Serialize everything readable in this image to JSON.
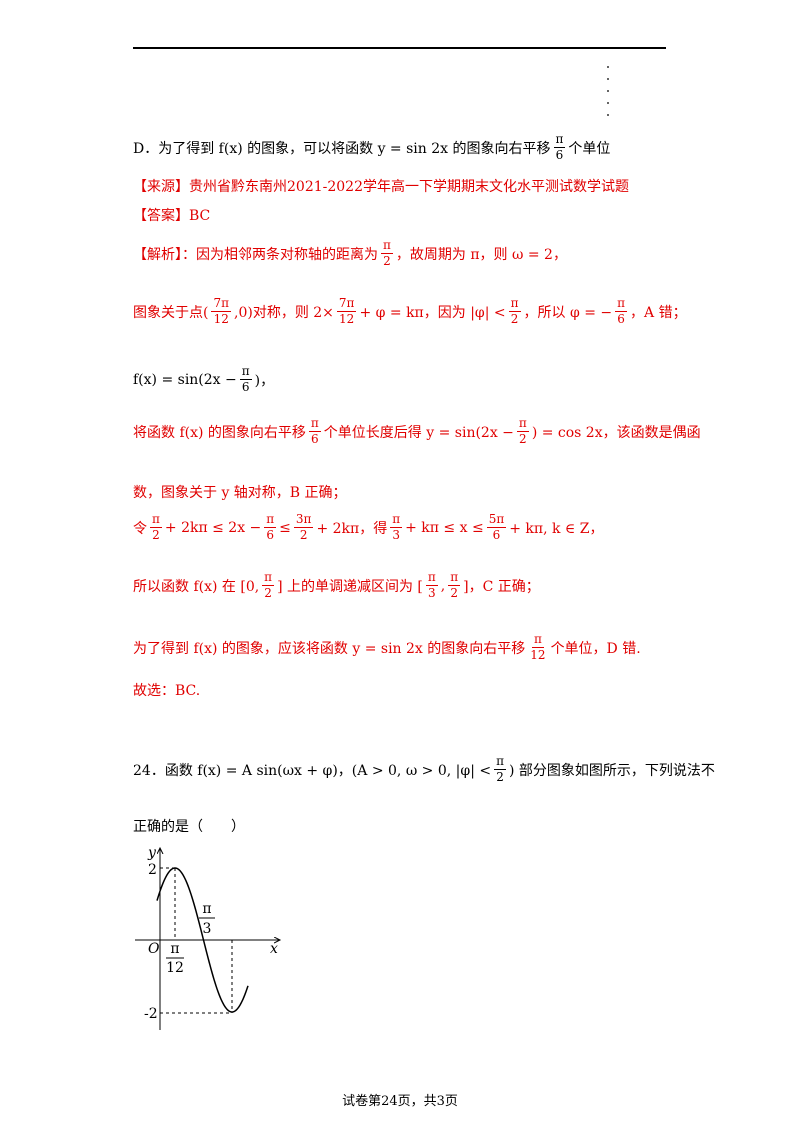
{
  "option_d": [
    "D．为了得到 f(x) 的图象，可以将函数 y = sin 2x 的图象向右平移",
    {
      "num": "π",
      "den": "6"
    },
    "个单位"
  ],
  "source": [
    "【来源】贵州省黔东南州2021-2022学年高一下学期期末文化水平测试数学试题"
  ],
  "answer": [
    "【答案】BC"
  ],
  "analysis": [
    [
      "【解析】：因为相邻两条对称轴的距离为",
      {
        "num": "π",
        "den": "2"
      },
      "，故周期为 π，则 ω = 2，"
    ],
    [
      "图象关于点(",
      {
        "num": "7π",
        "den": "12"
      },
      ",0)对称，则 2×",
      {
        "num": "7π",
        "den": "12"
      },
      "+ φ = kπ，因为 |φ| <",
      {
        "num": "π",
        "den": "2"
      },
      "，所以 φ = −",
      {
        "num": "π",
        "den": "6"
      },
      "，A 错；"
    ],
    [
      "f(x) = sin(2x −",
      {
        "num": "π",
        "den": "6"
      },
      ")，"
    ],
    [
      "将函数 f(x) 的图象向右平移",
      {
        "num": "π",
        "den": "6"
      },
      "个单位长度后得 y = sin(2x −",
      {
        "num": "π",
        "den": "2"
      },
      ") = cos 2x，该函数是偶函"
    ],
    [
      "数，图象关于 y 轴对称，B 正确；"
    ],
    [
      "令",
      {
        "num": "π",
        "den": "2"
      },
      "+ 2kπ ≤ 2x −",
      {
        "num": "π",
        "den": "6"
      },
      "≤",
      {
        "num": "3π",
        "den": "2"
      },
      "+ 2kπ，得",
      {
        "num": "π",
        "den": "3"
      },
      "+ kπ ≤ x ≤",
      {
        "num": "5π",
        "den": "6"
      },
      "+ kπ, k ∈ Z，"
    ],
    [
      "所以函数 f(x) 在 [0,",
      {
        "num": "π",
        "den": "2"
      },
      "] 上的单调递减区间为 [",
      {
        "num": "π",
        "den": "3"
      },
      ",",
      {
        "num": "π",
        "den": "2"
      },
      "]，C 正确；"
    ],
    [
      "为了得到 f(x) 的图象，应该将函数 y = sin 2x 的图象向右平移",
      {
        "num": "π",
        "den": "12"
      },
      "个单位，D 错."
    ],
    [
      "故选：BC."
    ]
  ],
  "question": [
    [
      "24．函数 f(x) = A sin(ωx + φ)，(A > 0, ω > 0, |φ| <",
      {
        "num": "π",
        "den": "2"
      },
      ") 部分图象如图所示，下列说法不"
    ],
    [
      "正确的是（　　）"
    ]
  ],
  "graph": {
    "y_label": "y",
    "x_label": "x",
    "origin_label": "O",
    "max_label": "2",
    "min_label": "-2",
    "zero_label": {
      "num": "π",
      "den": "3"
    },
    "quarter_label": {
      "num": "π",
      "den": "12"
    }
  },
  "footer": "试卷第24页，共3页"
}
